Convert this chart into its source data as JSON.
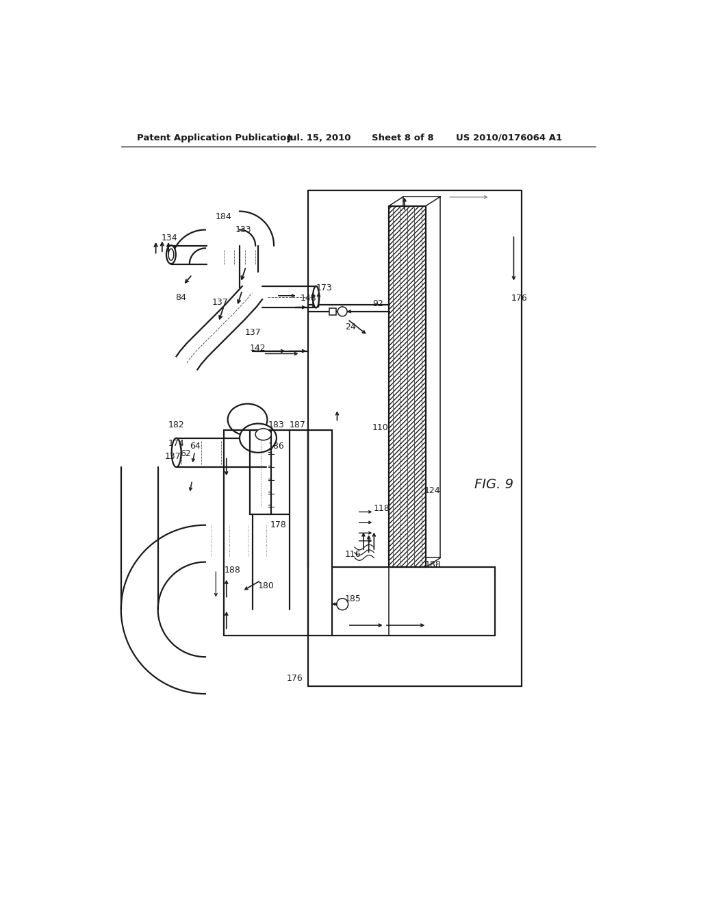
{
  "bg_color": "#ffffff",
  "header_text": "Patent Application Publication",
  "header_date": "Jul. 15, 2010",
  "header_sheet": "Sheet 8 of 8",
  "header_patent": "US 2010/0176064 A1",
  "fig_label": "FIG. 9",
  "line_color": "#1a1a1a",
  "lw_main": 1.6,
  "lw_thin": 1.1,
  "lw_border": 1.2
}
